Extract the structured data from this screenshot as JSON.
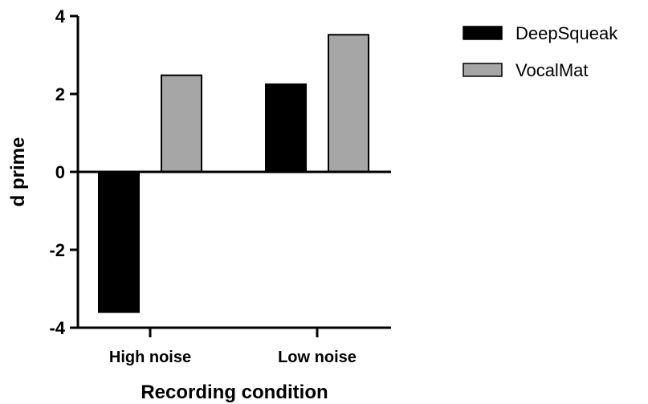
{
  "chart_data": {
    "type": "bar",
    "categories": [
      "High noise",
      "Low noise"
    ],
    "series": [
      {
        "name": "DeepSqueak",
        "values": [
          -3.6,
          2.25
        ],
        "color": "#000000"
      },
      {
        "name": "VocalMat",
        "values": [
          2.48,
          3.52
        ],
        "color": "#a6a6a6"
      }
    ],
    "xlabel": "Recording condition",
    "ylabel": "d prime",
    "ylim": [
      -4,
      4
    ],
    "yticks": [
      "-4",
      "-2",
      "0",
      "2",
      "4"
    ],
    "legend_position": "top-right",
    "grid": false
  }
}
